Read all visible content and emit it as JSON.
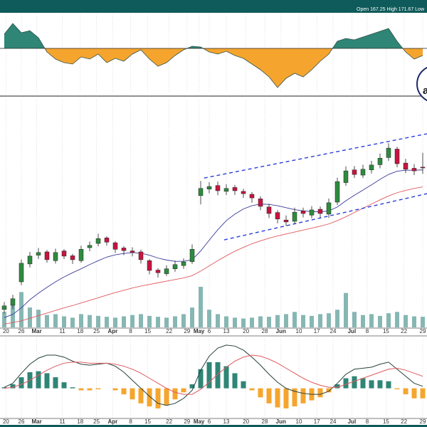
{
  "chart_data": [
    {
      "type": "area",
      "values": [
        20,
        35,
        22,
        25,
        15,
        -5,
        -15,
        -20,
        -22,
        -12,
        -15,
        -8,
        -20,
        -14,
        -18,
        -8,
        -2,
        -15,
        -25,
        -20,
        -10,
        -2,
        3,
        2,
        -5,
        -8,
        -4,
        -10,
        -14,
        -22,
        -30,
        -40,
        -55,
        -42,
        -35,
        -40,
        -30,
        -18,
        -8,
        10,
        14,
        12,
        16,
        20,
        24,
        28,
        10,
        -5,
        -15,
        -10
      ],
      "ylim": [
        -62,
        48
      ],
      "color": "#2f8576",
      "negative_color": "#f5a52e"
    },
    {
      "type": "candlestick",
      "header": "Open 167.25 High 171.67 Low",
      "annotation": "a",
      "open": [
        123.5,
        124.8,
        132.0,
        137.5,
        140.2,
        141.2,
        138.5,
        141.5,
        140.0,
        138.5,
        142.5,
        143.8,
        145.5,
        144.0,
        142.4,
        141.5,
        141.2,
        138.5,
        135.6,
        134.5,
        136.0,
        137.0,
        138.2,
        158.5,
        160.5,
        161.6,
        159.8,
        161.0,
        159.8,
        158.9,
        157.5,
        155.0,
        153.3,
        151.0,
        150.6,
        153.8,
        152.5,
        154.3,
        152.8,
        156.5,
        162.5,
        166.4,
        164.8,
        166.4,
        168.0,
        170.2,
        172.8,
        168.5,
        166.9,
        167.25
      ],
      "high": [
        125.8,
        128.0,
        138.9,
        141.2,
        142.4,
        141.8,
        142.2,
        142.0,
        140.6,
        143.1,
        144.4,
        146.8,
        146.0,
        144.5,
        143.0,
        142.6,
        141.9,
        139.0,
        136.2,
        137.1,
        138.5,
        139.2,
        143.5,
        163.0,
        162.6,
        162.8,
        162.0,
        161.8,
        160.6,
        159.6,
        158.3,
        156.0,
        154.0,
        152.4,
        154.8,
        154.8,
        155.3,
        155.2,
        157.6,
        164.0,
        167.5,
        167.6,
        168.0,
        169.2,
        171.4,
        174.6,
        173.5,
        169.8,
        168.2,
        171.67
      ],
      "low": [
        122.3,
        123.6,
        131.0,
        136.4,
        139.0,
        137.9,
        137.6,
        139.0,
        137.5,
        137.9,
        141.4,
        142.9,
        143.1,
        140.9,
        140.2,
        139.8,
        137.6,
        134.3,
        133.3,
        133.8,
        135.1,
        136.0,
        137.5,
        155.8,
        159.2,
        158.6,
        158.7,
        158.7,
        157.8,
        156.3,
        154.0,
        151.6,
        150.0,
        149.2,
        149.8,
        151.8,
        151.5,
        151.7,
        151.6,
        155.6,
        161.5,
        163.9,
        163.9,
        165.3,
        166.9,
        169.2,
        167.2,
        165.4,
        164.8,
        165.2
      ],
      "close": [
        124.6,
        126.8,
        137.7,
        139.9,
        141.0,
        138.8,
        141.0,
        139.9,
        138.8,
        142.0,
        143.2,
        145.3,
        144.2,
        142.0,
        141.6,
        141.0,
        138.8,
        135.5,
        134.8,
        136.0,
        137.3,
        138.1,
        142.0,
        160.7,
        161.3,
        160.0,
        160.7,
        160.0,
        159.1,
        157.8,
        155.2,
        153.0,
        151.3,
        150.4,
        153.4,
        153.0,
        154.1,
        153.0,
        156.3,
        162.8,
        166.1,
        165.0,
        166.6,
        167.9,
        170.0,
        173.1,
        168.3,
        166.6,
        166.1,
        167.0
      ],
      "up_color": "#2e8b3e",
      "down_color": "#c8143f",
      "ylim": [
        118,
        188
      ],
      "xlim": [
        -0.5,
        49.5
      ],
      "xticks": [
        {
          "value": 0.2,
          "label": "20"
        },
        {
          "value": 2,
          "label": "26"
        },
        {
          "value": 3.8,
          "label": "Mar"
        },
        {
          "value": 6.8,
          "label": "11"
        },
        {
          "value": 8.9,
          "label": "18"
        },
        {
          "value": 10.8,
          "label": "25"
        },
        {
          "value": 12.7,
          "label": "Apr"
        },
        {
          "value": 14.8,
          "label": "8"
        },
        {
          "value": 16.8,
          "label": "15"
        },
        {
          "value": 19.3,
          "label": "22"
        },
        {
          "value": 21.4,
          "label": "29"
        },
        {
          "value": 22.8,
          "label": "May"
        },
        {
          "value": 24,
          "label": "6"
        },
        {
          "value": 26,
          "label": "13"
        },
        {
          "value": 28.3,
          "label": "20"
        },
        {
          "value": 30.5,
          "label": "28"
        },
        {
          "value": 32.4,
          "label": "Jun"
        },
        {
          "value": 34.5,
          "label": "10"
        },
        {
          "value": 36.6,
          "label": "17"
        },
        {
          "value": 38.5,
          "label": "24"
        },
        {
          "value": 40.7,
          "label": "Jul"
        },
        {
          "value": 42.5,
          "label": "8"
        },
        {
          "value": 44.7,
          "label": "15"
        },
        {
          "value": 46.8,
          "label": "22"
        },
        {
          "value": 49,
          "label": "29"
        }
      ],
      "grid": true,
      "series": [
        {
          "color": "#3a3a9a",
          "values": [
            121,
            122,
            124,
            126.5,
            128.5,
            130.3,
            132,
            133.5,
            134.8,
            136,
            137.3,
            138.5,
            139.6,
            140.3,
            140.7,
            141,
            140.8,
            140.2,
            139.3,
            138.7,
            138.3,
            138.3,
            138.8,
            141.5,
            144.8,
            148,
            150.8,
            152.8,
            154.4,
            155.4,
            155.9,
            155.8,
            155.4,
            154.8,
            154.2,
            153.8,
            153.6,
            153.5,
            153.8,
            155,
            156.9,
            158.6,
            160.2,
            161.8,
            163.5,
            165,
            166,
            166.3,
            166.3,
            166.4
          ]
        },
        {
          "color": "#e0595e",
          "values": [
            119,
            119.5,
            120,
            120.8,
            121.6,
            122.4,
            123.2,
            124,
            124.7,
            125.5,
            126.3,
            127.1,
            127.9,
            128.7,
            129.4,
            130.1,
            130.7,
            131.2,
            131.7,
            132.2,
            132.7,
            133.2,
            133.9,
            135.3,
            136.9,
            138.5,
            140,
            141.4,
            142.6,
            143.7,
            144.6,
            145.4,
            146.1,
            146.7,
            147.3,
            147.9,
            148.5,
            149.1,
            149.8,
            150.8,
            152,
            153.3,
            154.6,
            155.9,
            157.2,
            158.4,
            159.4,
            160.1,
            160.7,
            161.2
          ]
        }
      ],
      "trendlines": [
        {
          "x": [
            23.4,
            49.5
          ],
          "y": [
            163.9,
            177.5
          ],
          "color": "#2b3fd6"
        },
        {
          "x": [
            25.75,
            49.5
          ],
          "y": [
            144.9,
            159.1
          ],
          "color": "#2b3fd6"
        }
      ],
      "volume": {
        "values": [
          35,
          60,
          80,
          45,
          40,
          28,
          30,
          25,
          22,
          30,
          28,
          26,
          24,
          22,
          25,
          28,
          30,
          26,
          24,
          22,
          25,
          30,
          45,
          92,
          40,
          30,
          25,
          22,
          20,
          22,
          25,
          24,
          28,
          30,
          35,
          28,
          26,
          30,
          32,
          40,
          78,
          35,
          28,
          30,
          26,
          32,
          35,
          28,
          25,
          24
        ],
        "ylim": [
          0,
          100
        ],
        "color": "#86b7b3"
      }
    },
    {
      "type": "macd",
      "ylim": [
        -3,
        5
      ],
      "series": [
        {
          "color": "#26403d",
          "values": [
            0.1,
            0.5,
            1.5,
            2.4,
            3.0,
            3.3,
            3.3,
            3.1,
            2.7,
            2.4,
            2.3,
            2.4,
            2.5,
            2.2,
            1.6,
            0.8,
            0,
            -0.8,
            -1.5,
            -1.7,
            -1.5,
            -1.0,
            -0.2,
            1.8,
            3.2,
            4.0,
            4.3,
            4.2,
            3.8,
            3.1,
            2.3,
            1.4,
            0.6,
            0,
            -0.3,
            -0.5,
            -0.6,
            -0.6,
            -0.3,
            0.5,
            1.4,
            1.9,
            2.0,
            2.1,
            2.4,
            2.6,
            1.9,
            1.2,
            0.5,
            0.2
          ]
        },
        {
          "color": "#e0595e",
          "values": [
            0,
            0.1,
            0.4,
            0.8,
            1.3,
            1.8,
            2.2,
            2.5,
            2.6,
            2.6,
            2.5,
            2.5,
            2.5,
            2.4,
            2.2,
            1.9,
            1.5,
            1.0,
            0.5,
            0,
            -0.4,
            -0.6,
            -0.6,
            -0.1,
            0.6,
            1.4,
            2.1,
            2.7,
            3.1,
            3.3,
            3.2,
            2.9,
            2.5,
            2.0,
            1.5,
            1.0,
            0.6,
            0.3,
            0.1,
            0.1,
            0.4,
            0.7,
            1.0,
            1.3,
            1.6,
            1.9,
            2.0,
            1.8,
            1.5,
            1.2
          ]
        }
      ],
      "histogram": {
        "values": [
          0.1,
          0.4,
          1.1,
          1.6,
          1.7,
          1.5,
          1.1,
          0.6,
          0.1,
          -0.2,
          -0.2,
          -0.1,
          0,
          -0.2,
          -0.6,
          -1.1,
          -1.5,
          -1.8,
          -2.0,
          -1.7,
          -1.1,
          -0.4,
          0.4,
          1.9,
          2.6,
          2.6,
          2.2,
          1.5,
          0.7,
          -0.2,
          -0.9,
          -1.5,
          -1.9,
          -2.0,
          -1.8,
          -1.5,
          -1.2,
          -0.9,
          -0.4,
          0.4,
          1.0,
          1.2,
          1.0,
          0.8,
          0.8,
          0.7,
          -0.1,
          -0.6,
          -1.0,
          -1.0
        ],
        "color": "#2f8576",
        "negative_color": "#f5a52e"
      }
    }
  ]
}
